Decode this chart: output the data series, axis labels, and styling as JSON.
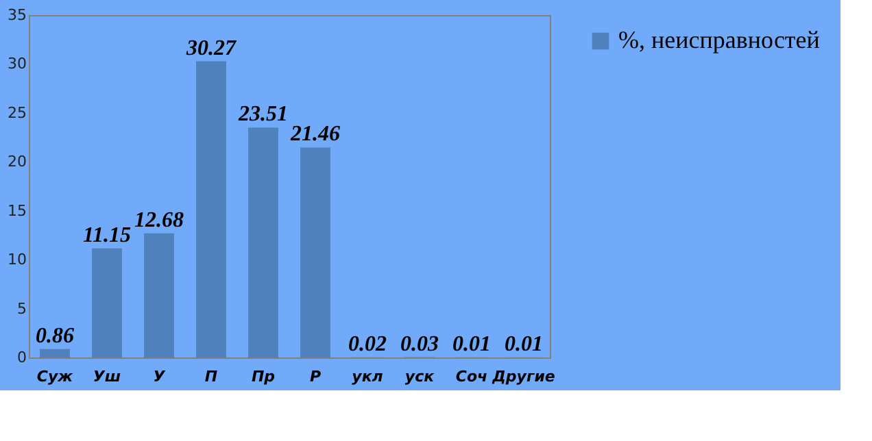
{
  "chart_data": {
    "type": "bar",
    "categories": [
      "Суж",
      "Уш",
      "У",
      "П",
      "Пр",
      "Р",
      "укл",
      "уск",
      "Соч",
      "Другие"
    ],
    "series": [
      {
        "name": "%, неисправностей",
        "color": "#4f81bd",
        "values": [
          0.86,
          11.15,
          12.68,
          30.27,
          23.51,
          21.46,
          0.02,
          0.03,
          0.01,
          0.01
        ]
      }
    ],
    "ylim": [
      0,
      35
    ],
    "yticks": [
      0,
      5,
      10,
      15,
      20,
      25,
      30,
      35
    ],
    "grid": false,
    "legend": "right",
    "data_labels": true
  }
}
